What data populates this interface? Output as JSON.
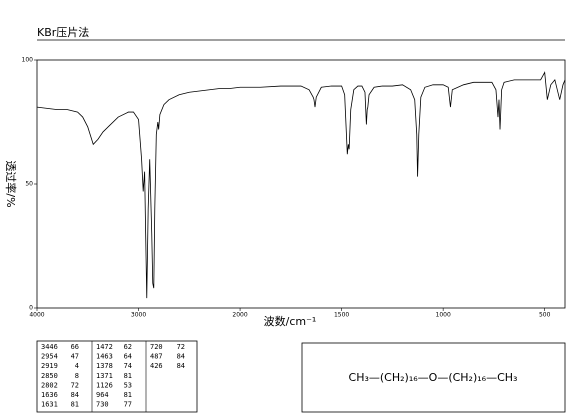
{
  "title": "KBr压片法",
  "chart_data": {
    "type": "line",
    "xlabel": "波数/cm⁻¹",
    "ylabel": "透过率/%",
    "xlim": [
      4000,
      400
    ],
    "ylim": [
      0,
      100
    ],
    "x_break": 2000,
    "xticks": [
      4000,
      3000,
      2000,
      1500,
      1000,
      500
    ],
    "yticks": [
      0,
      50,
      100
    ],
    "color": "#000000",
    "x": [
      4000,
      3900,
      3800,
      3700,
      3600,
      3550,
      3500,
      3446,
      3400,
      3350,
      3300,
      3200,
      3100,
      3050,
      3000,
      2970,
      2954,
      2940,
      2930,
      2919,
      2905,
      2890,
      2870,
      2860,
      2850,
      2840,
      2825,
      2810,
      2802,
      2790,
      2750,
      2700,
      2600,
      2500,
      2400,
      2300,
      2200,
      2100,
      2000,
      1900,
      1800,
      1700,
      1660,
      1640,
      1636,
      1631,
      1625,
      1600,
      1550,
      1500,
      1485,
      1472,
      1467,
      1463,
      1455,
      1440,
      1420,
      1400,
      1385,
      1378,
      1374,
      1371,
      1365,
      1340,
      1300,
      1250,
      1200,
      1160,
      1140,
      1130,
      1126,
      1120,
      1110,
      1090,
      1050,
      1000,
      975,
      964,
      955,
      900,
      850,
      800,
      760,
      740,
      730,
      725,
      720,
      712,
      700,
      650,
      600,
      550,
      520,
      500,
      487,
      470,
      450,
      426,
      410,
      400
    ],
    "values": [
      81,
      80.5,
      80,
      80,
      79,
      77,
      73,
      66,
      68,
      71,
      73,
      77,
      79,
      79,
      76,
      60,
      47,
      55,
      30,
      4,
      40,
      60,
      30,
      10,
      8,
      40,
      70,
      75,
      72,
      78,
      82,
      84,
      86,
      87,
      87.5,
      88,
      88.5,
      88.5,
      89,
      89,
      89.5,
      89.5,
      88,
      85,
      84,
      81,
      85,
      89,
      89.5,
      89.5,
      86,
      62,
      66,
      64,
      80,
      88,
      89.5,
      89.5,
      87,
      74,
      80,
      81,
      86,
      89,
      89.5,
      89.5,
      90,
      88,
      84,
      70,
      53,
      70,
      85,
      89,
      90,
      90,
      89,
      81,
      88,
      90,
      91,
      91,
      91,
      88,
      77,
      84,
      72,
      88,
      91,
      92,
      92,
      92,
      92,
      95,
      84,
      90,
      92,
      84,
      90,
      92
    ]
  },
  "peak_table": [
    [
      [
        3446,
        66
      ],
      [
        2954,
        47
      ],
      [
        2919,
        4
      ],
      [
        2850,
        8
      ],
      [
        2802,
        72
      ],
      [
        1636,
        84
      ],
      [
        1631,
        81
      ]
    ],
    [
      [
        1472,
        62
      ],
      [
        1463,
        64
      ],
      [
        1378,
        74
      ],
      [
        1371,
        81
      ],
      [
        1126,
        53
      ],
      [
        964,
        81
      ],
      [
        730,
        77
      ]
    ],
    [
      [
        720,
        72
      ],
      [
        487,
        84
      ],
      [
        426,
        84
      ]
    ]
  ],
  "structure": "CH₃—(CH₂)₁₆—O—(CH₂)₁₆—CH₃"
}
